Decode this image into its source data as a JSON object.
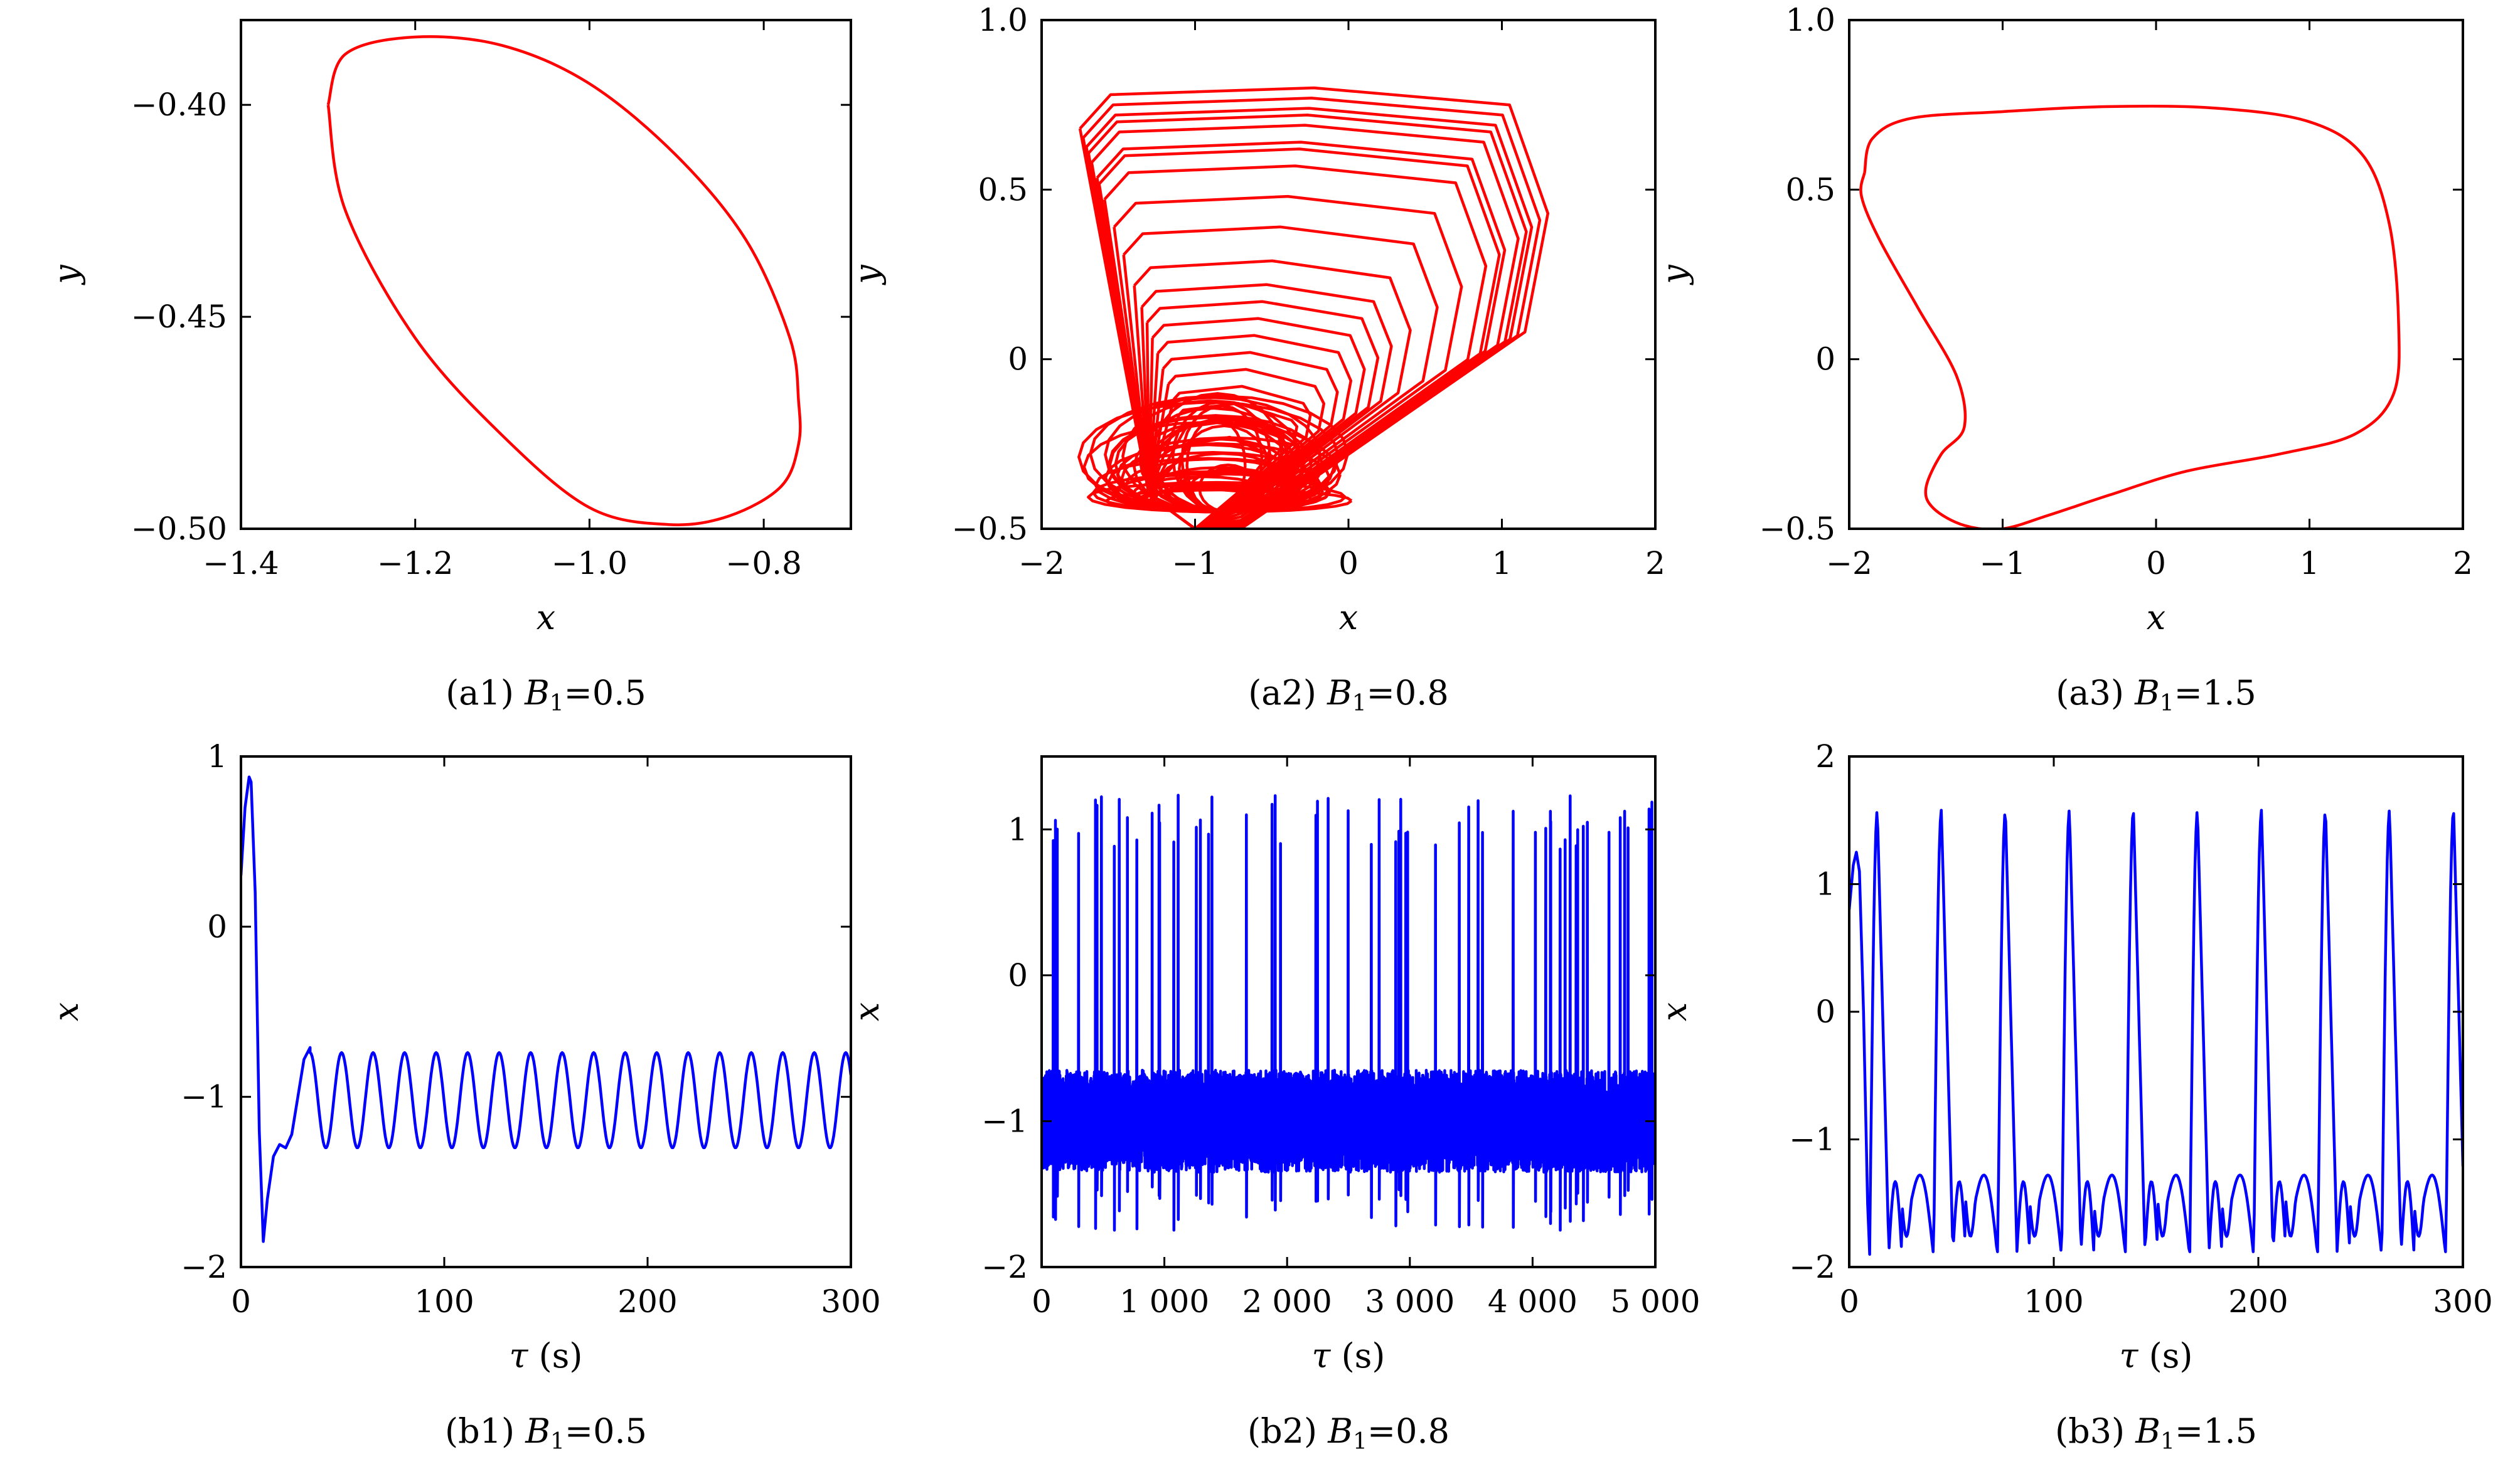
{
  "chart_data": [
    {
      "id": "a1",
      "type": "line",
      "caption_prefix": "(a1)",
      "param": "B",
      "param_sub": "1",
      "param_value": "=0.5",
      "xlabel": "x",
      "ylabel": "y",
      "xlim": [
        -1.4,
        -0.7
      ],
      "ylim": [
        -0.5,
        -0.38
      ],
      "xticks": [
        -1.4,
        -1.2,
        -1.0,
        -0.8
      ],
      "xtick_labels": [
        "−1.4",
        "−1.2",
        "−1.0",
        "−0.8"
      ],
      "yticks": [
        -0.5,
        -0.45,
        -0.4
      ],
      "ytick_labels": [
        "−0.50",
        "−0.45",
        "−0.40"
      ],
      "color": "#ff0000",
      "series": [
        {
          "x": [
            -1.3,
            -1.28,
            -1.2,
            -1.1,
            -1.0,
            -0.9,
            -0.82,
            -0.77,
            -0.76,
            -0.76,
            -0.78,
            -0.84,
            -0.91,
            -1.0,
            -1.1,
            -1.2,
            -1.28,
            -1.3
          ],
          "y": [
            -0.4,
            -0.388,
            -0.384,
            -0.386,
            -0.395,
            -0.412,
            -0.432,
            -0.455,
            -0.47,
            -0.48,
            -0.49,
            -0.497,
            -0.499,
            -0.495,
            -0.478,
            -0.455,
            -0.425,
            -0.4
          ]
        }
      ]
    },
    {
      "id": "a2",
      "type": "line",
      "caption_prefix": "(a2)",
      "param": "B",
      "param_sub": "1",
      "param_value": "=0.8",
      "xlabel": "x",
      "ylabel": "y",
      "xlim": [
        -2,
        2
      ],
      "ylim": [
        -0.5,
        1.0
      ],
      "xticks": [
        -2,
        -1,
        0,
        1,
        2
      ],
      "xtick_labels": [
        "−2",
        "−1",
        "0",
        "1",
        "2"
      ],
      "yticks": [
        -0.5,
        0,
        0.5,
        1.0
      ],
      "ytick_labels": [
        "−0.5",
        "0",
        "0.5",
        "1.0"
      ],
      "color": "#ff0000",
      "series": [
        {
          "description_free": true,
          "loops_peak_y": [
            0.78,
            0.75,
            0.72,
            0.7,
            0.67,
            0.62,
            0.6,
            0.55,
            0.46,
            0.37,
            0.27,
            0.2,
            0.15,
            0.1,
            0.05,
            0.0,
            -0.05,
            -0.1,
            -0.15,
            -0.2,
            -0.25
          ],
          "envelope": {
            "x_min": -1.75,
            "x_max": 1.28,
            "y_min": -0.5,
            "y_max": 0.78
          }
        }
      ]
    },
    {
      "id": "a3",
      "type": "line",
      "caption_prefix": "(a3)",
      "param": "B",
      "param_sub": "1",
      "param_value": "=1.5",
      "xlabel": "x",
      "ylabel": "y",
      "xlim": [
        -2,
        2
      ],
      "ylim": [
        -0.5,
        1.0
      ],
      "xticks": [
        -2,
        -1,
        0,
        1,
        2
      ],
      "xtick_labels": [
        "−2",
        "−1",
        "0",
        "1",
        "2"
      ],
      "yticks": [
        -0.5,
        0,
        0.5,
        1.0
      ],
      "ytick_labels": [
        "−0.5",
        "0",
        "0.5",
        "1.0"
      ],
      "color": "#ff0000",
      "series": [
        {
          "x": [
            -1.9,
            -1.85,
            -1.6,
            -1.0,
            -0.3,
            0.4,
            1.0,
            1.35,
            1.52,
            1.58,
            1.55,
            1.3,
            0.8,
            0.2,
            -0.3,
            -0.7,
            -1.0,
            -1.25,
            -1.45,
            -1.5,
            -1.4,
            -1.25,
            -1.3,
            -1.55,
            -1.8,
            -1.92,
            -1.9
          ],
          "y": [
            0.55,
            0.65,
            0.71,
            0.73,
            0.745,
            0.74,
            0.7,
            0.6,
            0.4,
            0.12,
            -0.1,
            -0.22,
            -0.28,
            -0.33,
            -0.4,
            -0.46,
            -0.5,
            -0.49,
            -0.44,
            -0.38,
            -0.28,
            -0.2,
            -0.05,
            0.15,
            0.35,
            0.48,
            0.55
          ]
        }
      ]
    },
    {
      "id": "b1",
      "type": "line",
      "caption_prefix": "(b1)",
      "param": "B",
      "param_sub": "1",
      "param_value": "=0.5",
      "xlabel": "τ (s)",
      "ylabel": "x",
      "xlim": [
        0,
        300
      ],
      "ylim": [
        -2,
        1
      ],
      "xticks": [
        0,
        100,
        200,
        300
      ],
      "xtick_labels": [
        "0",
        "100",
        "200",
        "300"
      ],
      "yticks": [
        -2,
        -1,
        0,
        1
      ],
      "ytick_labels": [
        "−2",
        "−1",
        "0",
        "1"
      ],
      "color": "#0000ff",
      "series": [
        {
          "x": [
            0,
            2,
            4,
            5,
            7,
            9,
            11,
            13,
            16,
            19,
            22,
            25,
            28,
            31,
            34
          ],
          "y": [
            0.3,
            0.7,
            0.88,
            0.85,
            0.2,
            -1.2,
            -1.85,
            -1.6,
            -1.35,
            -1.28,
            -1.3,
            -1.22,
            -1.0,
            -0.78,
            -0.71
          ],
          "periodic_tail": {
            "start": 34,
            "end": 300,
            "period": 15.5,
            "max": -0.74,
            "min": -1.3
          }
        }
      ]
    },
    {
      "id": "b2",
      "type": "line",
      "caption_prefix": "(b2)",
      "param": "B",
      "param_sub": "1",
      "param_value": "=0.8",
      "xlabel": "τ (s)",
      "ylabel": "x",
      "xlim": [
        0,
        5000
      ],
      "ylim": [
        -2,
        1.5
      ],
      "xticks": [
        0,
        1000,
        2000,
        3000,
        4000,
        5000
      ],
      "xtick_labels": [
        "0",
        "1 000",
        "2 000",
        "3 000",
        "4 000",
        "5 000"
      ],
      "yticks": [
        -2,
        -1,
        0,
        1
      ],
      "ytick_labels": [
        "−2",
        "−1",
        "0",
        "1"
      ],
      "color": "#0000ff",
      "series": [
        {
          "band": {
            "low": -1.35,
            "high": -0.65
          },
          "spike_max": 1.25,
          "spike_min": -1.75,
          "spike_count": 60
        }
      ]
    },
    {
      "id": "b3",
      "type": "line",
      "caption_prefix": "(b3)",
      "param": "B",
      "param_sub": "1",
      "param_value": "=1.5",
      "xlabel": "τ (s)",
      "ylabel": "x",
      "xlim": [
        0,
        300
      ],
      "ylim": [
        -2,
        2
      ],
      "xticks": [
        0,
        100,
        200,
        300
      ],
      "xtick_labels": [
        "0",
        "100",
        "200",
        "300"
      ],
      "yticks": [
        -2,
        -1,
        0,
        1,
        2
      ],
      "ytick_labels": [
        "−2",
        "−1",
        "0",
        "1",
        "2"
      ],
      "color": "#0000ff",
      "series": [
        {
          "x": [
            0,
            2,
            3.5,
            5,
            7,
            9,
            10
          ],
          "y": [
            0.8,
            1.15,
            1.25,
            1.1,
            0.0,
            -1.5,
            -1.9
          ],
          "periodic_tail": {
            "start": 10,
            "end": 300,
            "period": 31.3,
            "max": 1.58,
            "min": -1.88
          }
        }
      ]
    }
  ]
}
